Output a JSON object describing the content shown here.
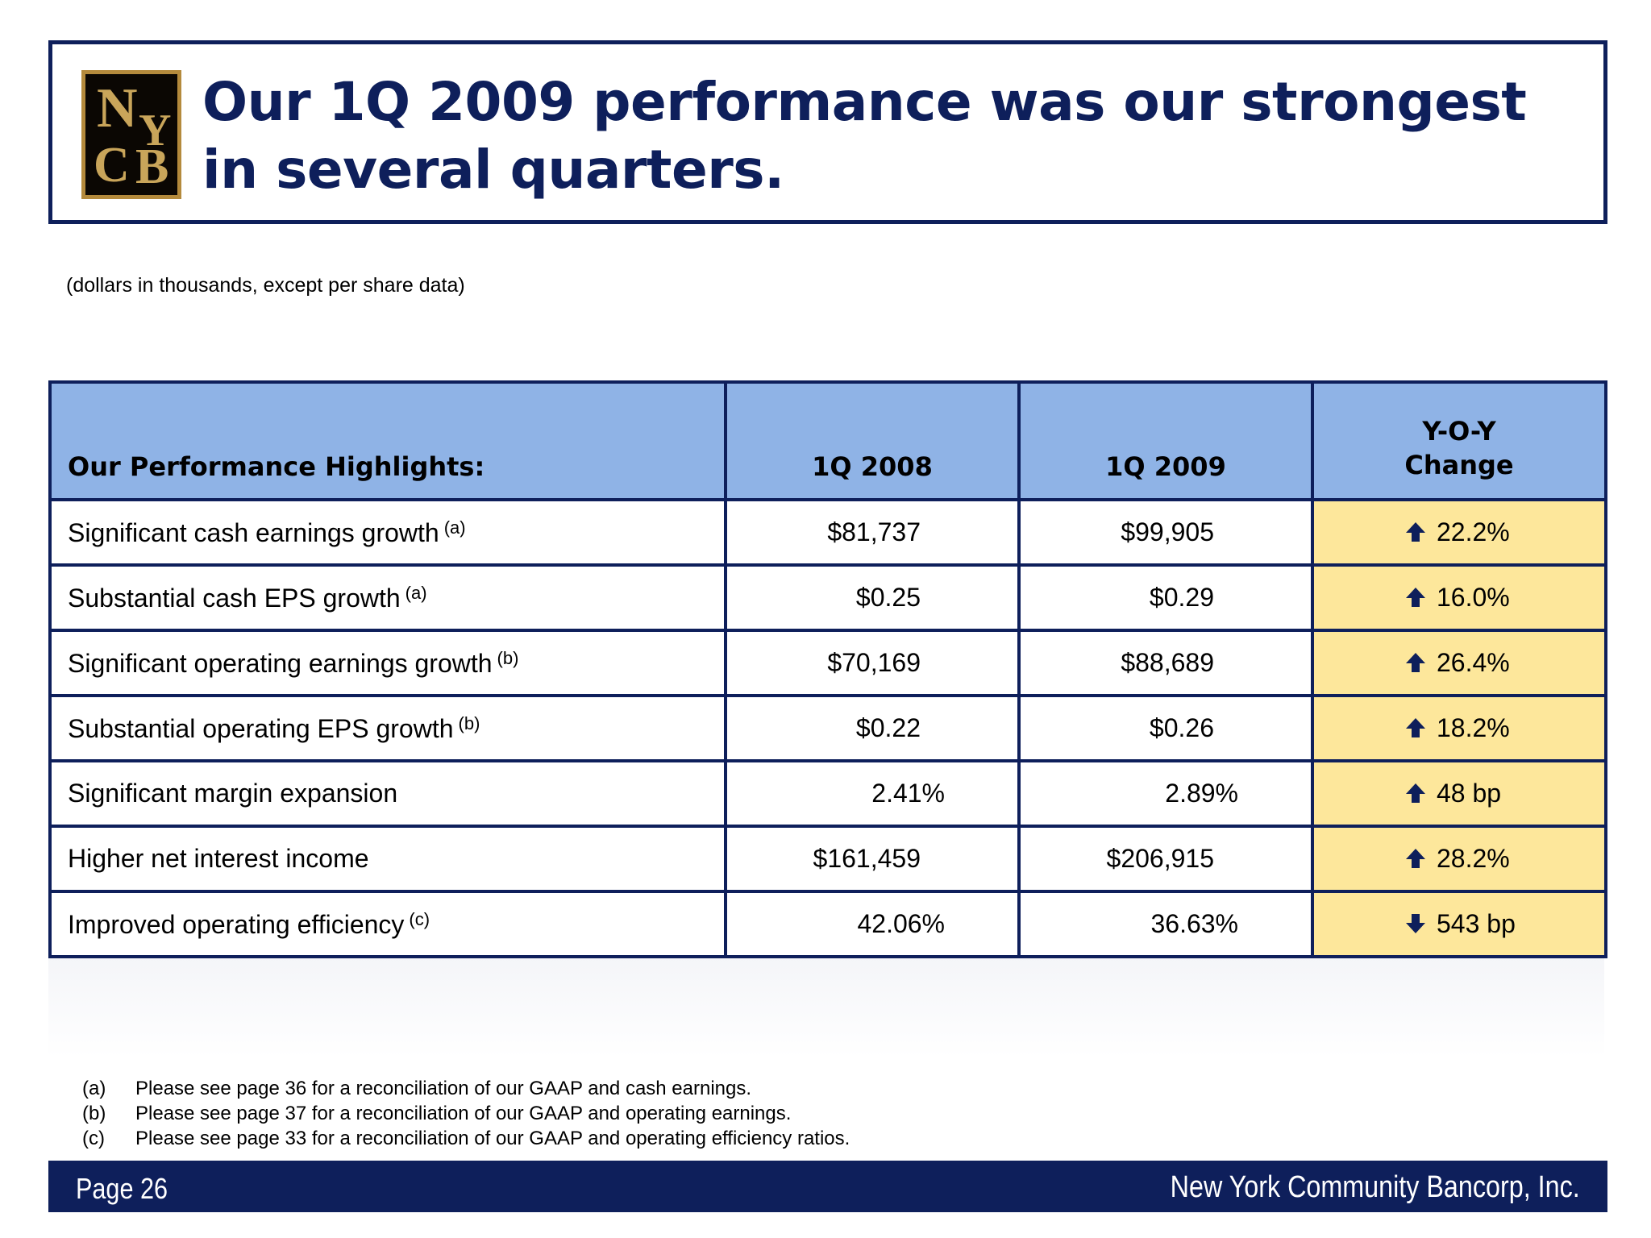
{
  "header": {
    "title": "Our 1Q 2009 performance was our strongest in several quarters.",
    "logo_letters": [
      "N",
      "Y",
      "C",
      "B"
    ]
  },
  "units_note": "(dollars in thousands, except per share data)",
  "table": {
    "headers": {
      "label": "Our Performance Highlights:",
      "col1": "1Q 2008",
      "col2": "1Q 2009",
      "change_line1": "Y-O-Y",
      "change_line2": "Change"
    },
    "rows": [
      {
        "label": "Significant cash earnings growth",
        "note": "(a)",
        "q2008": "$81,737",
        "q2009": "$99,905",
        "direction": "up",
        "change": "22.2%"
      },
      {
        "label": "Substantial cash EPS growth",
        "note": "(a)",
        "q2008": "$0.25",
        "q2009": "$0.29",
        "direction": "up",
        "change": "16.0%"
      },
      {
        "label": "Significant operating earnings growth",
        "note": "(b)",
        "q2008": "$70,169",
        "q2009": "$88,689",
        "direction": "up",
        "change": "26.4%"
      },
      {
        "label": "Substantial operating EPS growth",
        "note": "(b)",
        "q2008": "$0.22",
        "q2009": "$0.26",
        "direction": "up",
        "change": "18.2%"
      },
      {
        "label": "Significant margin expansion",
        "note": "",
        "q2008": "2.41%",
        "q2009": "2.89%",
        "direction": "up",
        "change": "48 bp"
      },
      {
        "label": "Higher net interest income",
        "note": "",
        "q2008": "$161,459",
        "q2009": "$206,915",
        "direction": "up",
        "change": "28.2%"
      },
      {
        "label": "Improved operating efficiency",
        "note": "(c)",
        "q2008": "42.06%",
        "q2009": "36.63%",
        "direction": "down",
        "change": "543 bp"
      }
    ]
  },
  "footnotes": [
    {
      "mark": "(a)",
      "text": "Please see page 36 for a reconciliation of our GAAP and cash earnings."
    },
    {
      "mark": "(b)",
      "text": "Please see page 37 for a reconciliation of our GAAP and operating earnings."
    },
    {
      "mark": "(c)",
      "text": "Please see page 33 for a reconciliation of our GAAP and operating efficiency ratios."
    }
  ],
  "footer": {
    "page": "Page 26",
    "company": "New York Community Bancorp, Inc."
  },
  "colors": {
    "navy": "#0e1f5b",
    "header_blue": "#8fb3e6",
    "change_yellow": "#fde79b",
    "logo_gold": "#b48a3c"
  }
}
